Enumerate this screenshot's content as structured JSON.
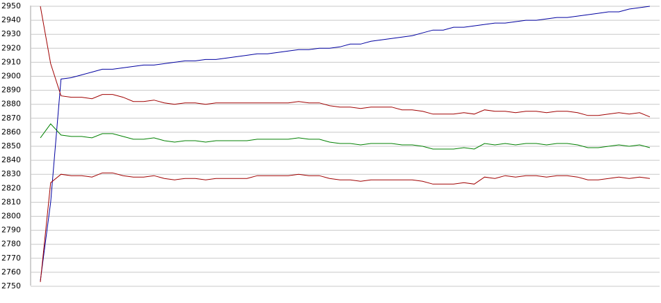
{
  "chart_data": {
    "type": "line",
    "ylim": [
      2750,
      2950
    ],
    "yticks": [
      2750,
      2760,
      2770,
      2780,
      2790,
      2800,
      2810,
      2820,
      2830,
      2840,
      2850,
      2860,
      2870,
      2880,
      2890,
      2900,
      2910,
      2920,
      2930,
      2940,
      2950
    ],
    "grid": true,
    "series": [
      {
        "color": "#0000a0",
        "values": [
          2754,
          2810,
          2898,
          2899,
          2901,
          2903,
          2905,
          2905,
          2906,
          2907,
          2908,
          2908,
          2909,
          2910,
          2911,
          2911,
          2912,
          2912,
          2913,
          2914,
          2915,
          2916,
          2916,
          2917,
          2918,
          2919,
          2919,
          2920,
          2920,
          2921,
          2923,
          2923,
          2925,
          2926,
          2927,
          2928,
          2929,
          2931,
          2933,
          2933,
          2935,
          2935,
          2936,
          2937,
          2938,
          2938,
          2939,
          2940,
          2940,
          2941,
          2942,
          2942,
          2943,
          2944,
          2945,
          2946,
          2946,
          2948,
          2949,
          2950
        ]
      },
      {
        "color": "#a00000",
        "values": [
          2950,
          2909,
          2886,
          2885,
          2885,
          2884,
          2887,
          2887,
          2885,
          2882,
          2882,
          2883,
          2881,
          2880,
          2881,
          2881,
          2880,
          2881,
          2881,
          2881,
          2881,
          2881,
          2881,
          2881,
          2881,
          2882,
          2881,
          2881,
          2879,
          2878,
          2878,
          2877,
          2878,
          2878,
          2878,
          2876,
          2876,
          2875,
          2873,
          2873,
          2873,
          2874,
          2873,
          2876,
          2875,
          2875,
          2874,
          2875,
          2875,
          2874,
          2875,
          2875,
          2874,
          2872,
          2872,
          2873,
          2874,
          2873,
          2874,
          2871
        ]
      },
      {
        "color": "#008000",
        "values": [
          2856,
          2866,
          2858,
          2857,
          2857,
          2856,
          2859,
          2859,
          2857,
          2855,
          2855,
          2856,
          2854,
          2853,
          2854,
          2854,
          2853,
          2854,
          2854,
          2854,
          2854,
          2855,
          2855,
          2855,
          2855,
          2856,
          2855,
          2855,
          2853,
          2852,
          2852,
          2851,
          2852,
          2852,
          2852,
          2851,
          2851,
          2850,
          2848,
          2848,
          2848,
          2849,
          2848,
          2852,
          2851,
          2852,
          2851,
          2852,
          2852,
          2851,
          2852,
          2852,
          2851,
          2849,
          2849,
          2850,
          2851,
          2850,
          2851,
          2849
        ]
      },
      {
        "color": "#a00000",
        "values": [
          2753,
          2824,
          2830,
          2829,
          2829,
          2828,
          2831,
          2831,
          2829,
          2828,
          2828,
          2829,
          2827,
          2826,
          2827,
          2827,
          2826,
          2827,
          2827,
          2827,
          2827,
          2829,
          2829,
          2829,
          2829,
          2830,
          2829,
          2829,
          2827,
          2826,
          2826,
          2825,
          2826,
          2826,
          2826,
          2826,
          2826,
          2825,
          2823,
          2823,
          2823,
          2824,
          2823,
          2828,
          2827,
          2829,
          2828,
          2829,
          2829,
          2828,
          2829,
          2829,
          2828,
          2826,
          2826,
          2827,
          2828,
          2827,
          2828,
          2827
        ]
      }
    ]
  }
}
